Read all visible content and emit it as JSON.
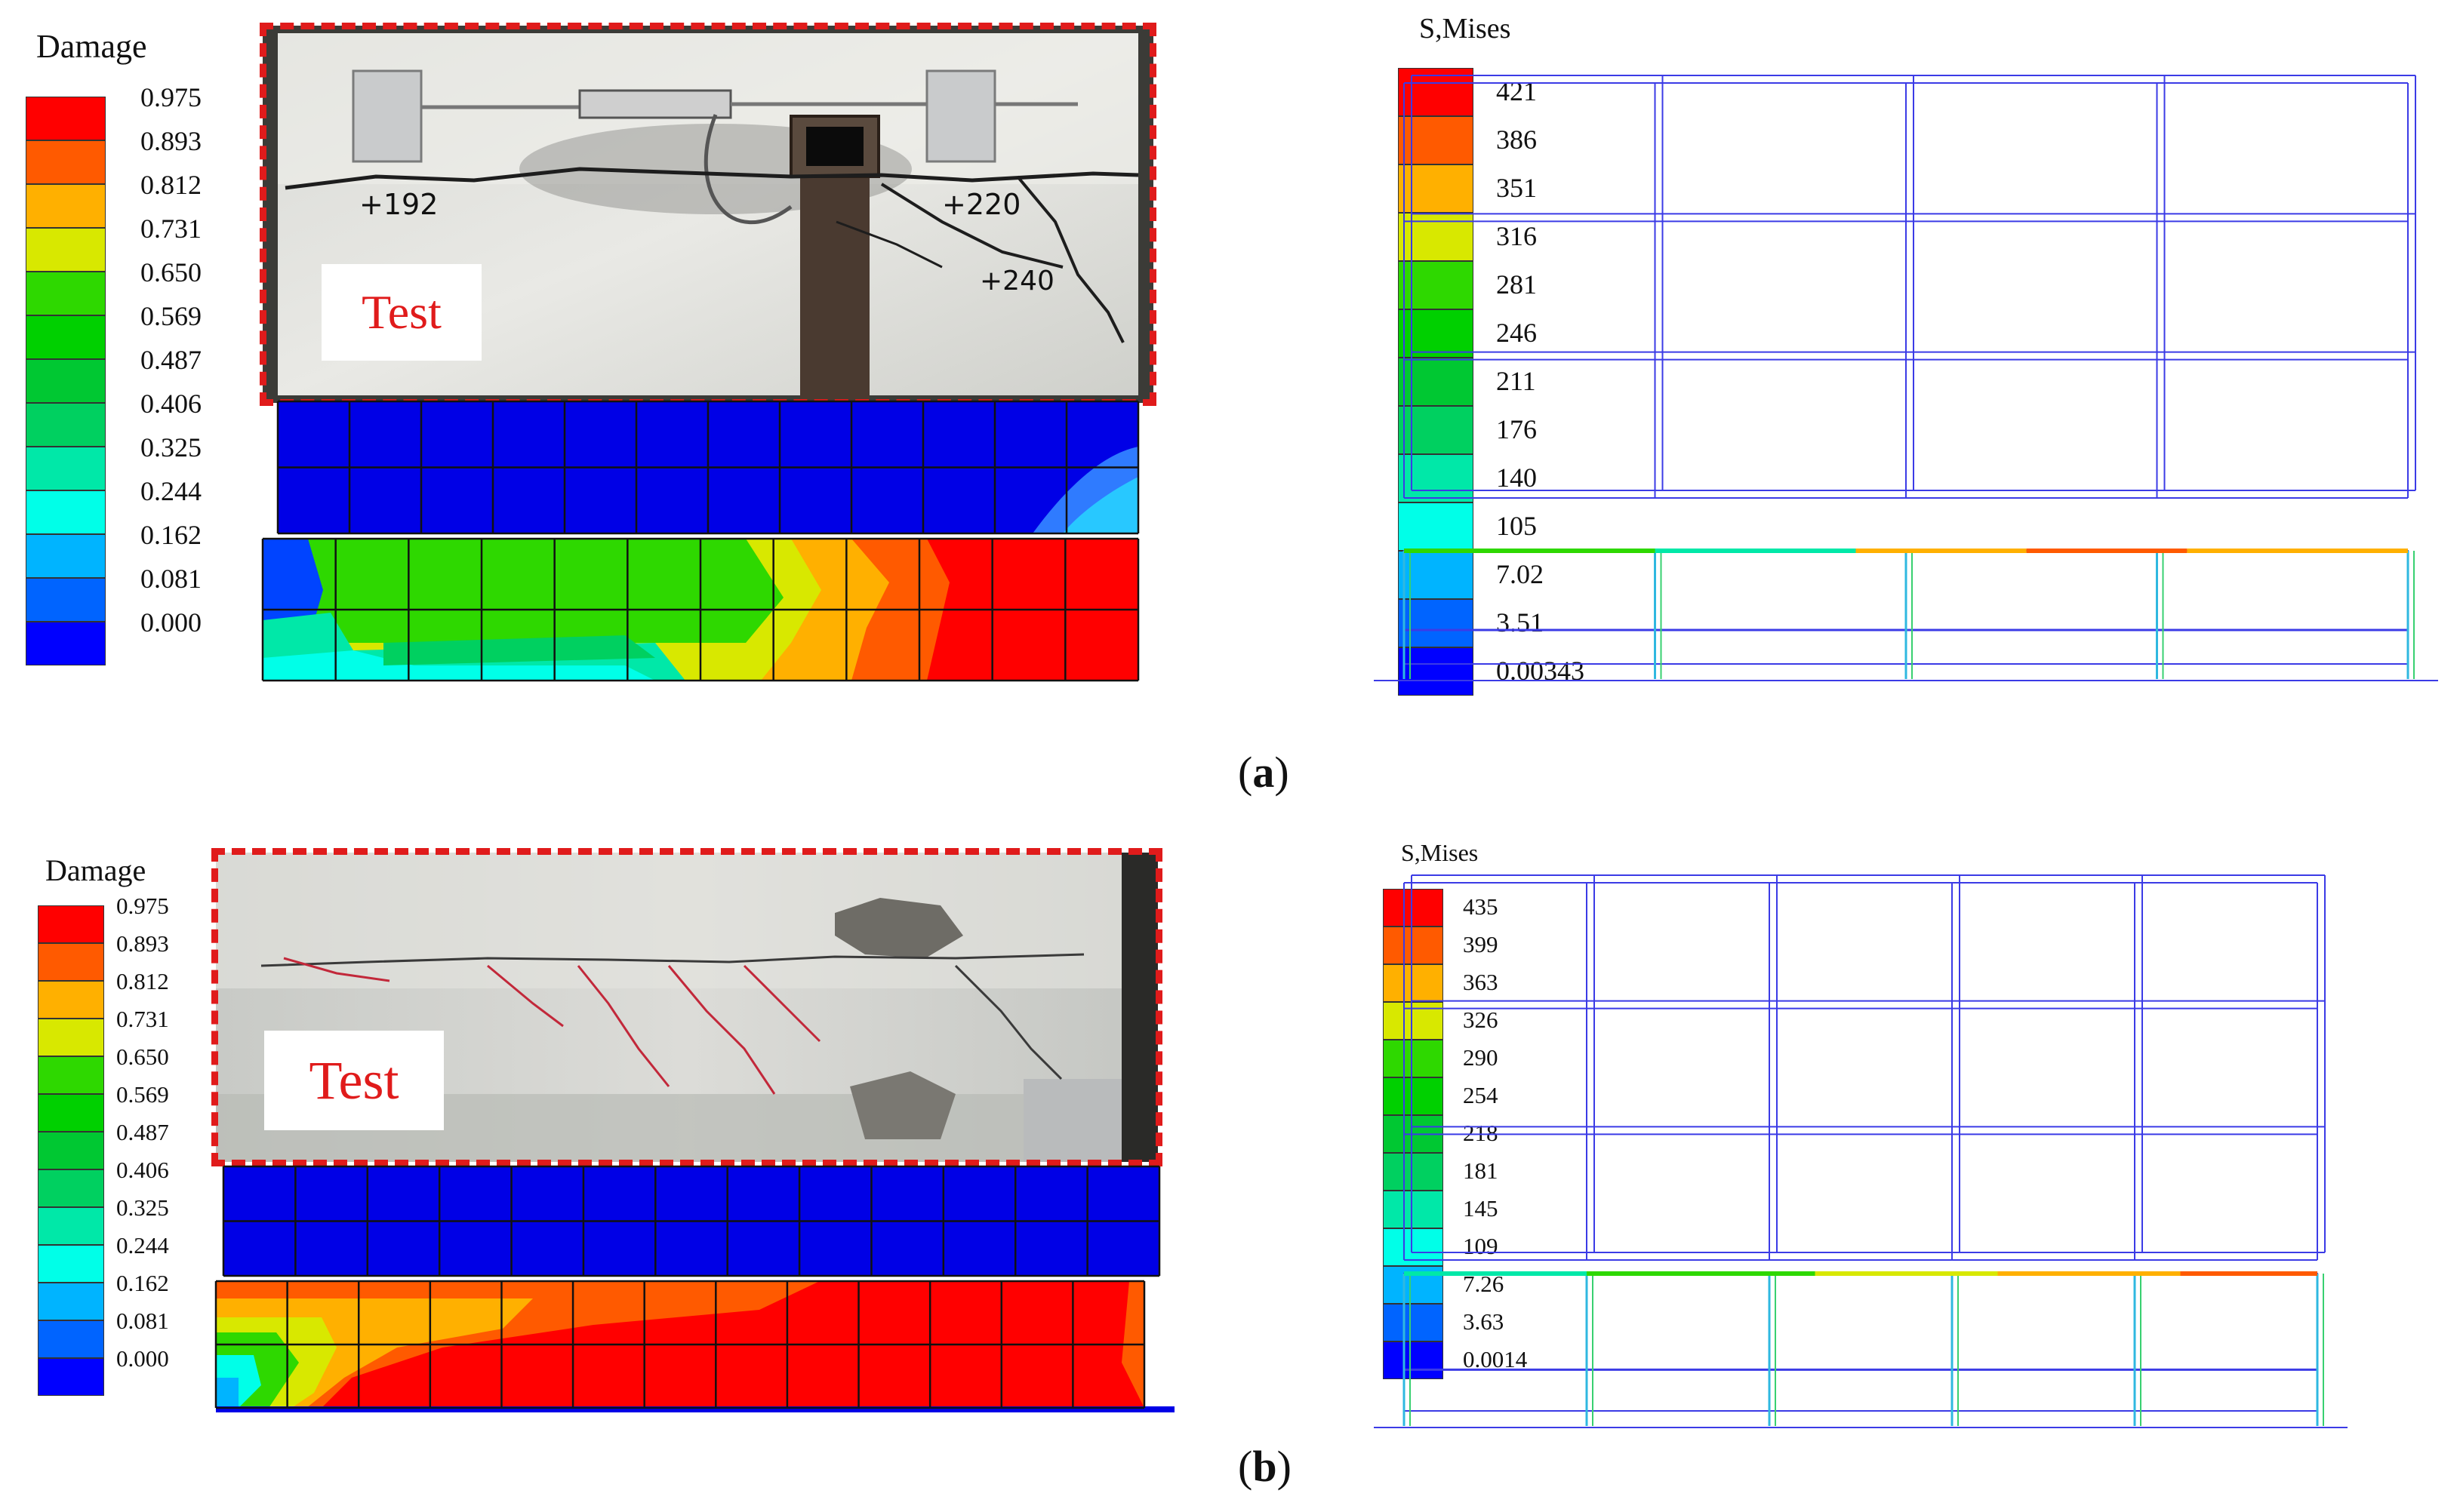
{
  "panels": [
    {
      "id": "a",
      "label_open": "(",
      "label_letter": "a",
      "label_close": ")",
      "damage": {
        "title": "Damage",
        "levels": [
          "0.975",
          "0.893",
          "0.812",
          "0.731",
          "0.650",
          "0.569",
          "0.487",
          "0.406",
          "0.325",
          "0.244",
          "0.162",
          "0.081",
          "0.000"
        ],
        "colors": [
          "#ff0000",
          "#ff5a00",
          "#ffb000",
          "#d8e800",
          "#2ed800",
          "#00d000",
          "#00c832",
          "#00d060",
          "#00e8a8",
          "#00ffe8",
          "#00b4ff",
          "#0064ff",
          "#0000ff"
        ]
      },
      "photo_text": "Test",
      "photo_annotations": [
        "+192",
        "+220",
        "+240"
      ],
      "mises": {
        "title": "S,Mises",
        "levels": [
          "421",
          "386",
          "351",
          "316",
          "281",
          "246",
          "211",
          "176",
          "140",
          "105",
          "7.02",
          "3.51",
          "0.00343"
        ],
        "colors": [
          "#ff0000",
          "#ff5a00",
          "#ffb000",
          "#d8e800",
          "#2ed800",
          "#00d000",
          "#00c832",
          "#00d060",
          "#00e8a8",
          "#00ffe8",
          "#00b4ff",
          "#0064ff",
          "#0000ff"
        ]
      }
    },
    {
      "id": "b",
      "label_open": "(",
      "label_letter": "b",
      "label_close": ")",
      "damage": {
        "title": "Damage",
        "levels": [
          "0.975",
          "0.893",
          "0.812",
          "0.731",
          "0.650",
          "0.569",
          "0.487",
          "0.406",
          "0.325",
          "0.244",
          "0.162",
          "0.081",
          "0.000"
        ],
        "colors": [
          "#ff0000",
          "#ff5a00",
          "#ffb000",
          "#d8e800",
          "#2ed800",
          "#00d000",
          "#00c832",
          "#00d060",
          "#00e8a8",
          "#00ffe8",
          "#00b4ff",
          "#0064ff",
          "#0000ff"
        ]
      },
      "photo_text": "Test",
      "mises": {
        "title": "S,Mises",
        "levels": [
          "435",
          "399",
          "363",
          "326",
          "290",
          "254",
          "218",
          "181",
          "145",
          "109",
          "7.26",
          "3.63",
          "0.0014"
        ],
        "colors": [
          "#ff0000",
          "#ff5a00",
          "#ffb000",
          "#d8e800",
          "#2ed800",
          "#00d000",
          "#00c832",
          "#00d060",
          "#00e8a8",
          "#00ffe8",
          "#00b4ff",
          "#0064ff",
          "#0000ff"
        ]
      }
    }
  ]
}
